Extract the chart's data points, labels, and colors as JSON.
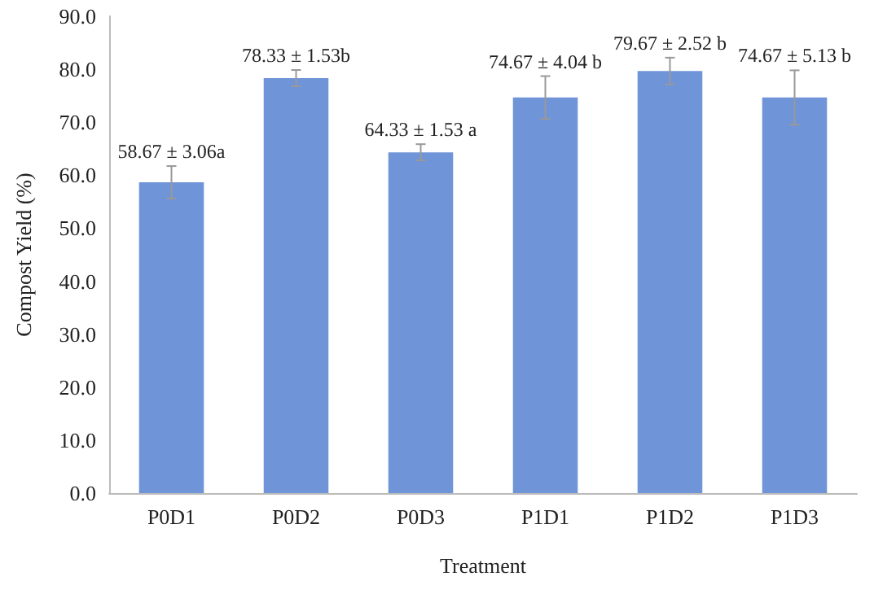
{
  "chart_data": {
    "type": "bar",
    "xlabel": "Treatment",
    "ylabel": "Compost Yield (%)",
    "categories": [
      "P0D1",
      "P0D2",
      "P0D3",
      "P1D1",
      "P1D2",
      "P1D3"
    ],
    "values": [
      58.67,
      78.33,
      64.33,
      74.67,
      79.67,
      74.67
    ],
    "errors": [
      3.06,
      1.53,
      1.53,
      4.04,
      2.52,
      5.13
    ],
    "value_labels": [
      "58.67 ± 3.06a",
      "78.33 ± 1.53b",
      "64.33 ± 1.53 a",
      "74.67 ± 4.04 b",
      "79.67 ± 2.52 b",
      "74.67 ± 5.13 b"
    ],
    "color": "#7094d8",
    "ylim": [
      0,
      90
    ],
    "yticks": [
      {
        "value": 0,
        "label": "0.0"
      },
      {
        "value": 10,
        "label": "10.0"
      },
      {
        "value": 20,
        "label": "20.0"
      },
      {
        "value": 30,
        "label": "30.0"
      },
      {
        "value": 40,
        "label": "40.0"
      },
      {
        "value": 50,
        "label": "50.0"
      },
      {
        "value": 60,
        "label": "60.0"
      },
      {
        "value": 70,
        "label": "70.0"
      },
      {
        "value": 80,
        "label": "80.0"
      },
      {
        "value": 90,
        "label": "90.0"
      }
    ],
    "grid": false
  }
}
